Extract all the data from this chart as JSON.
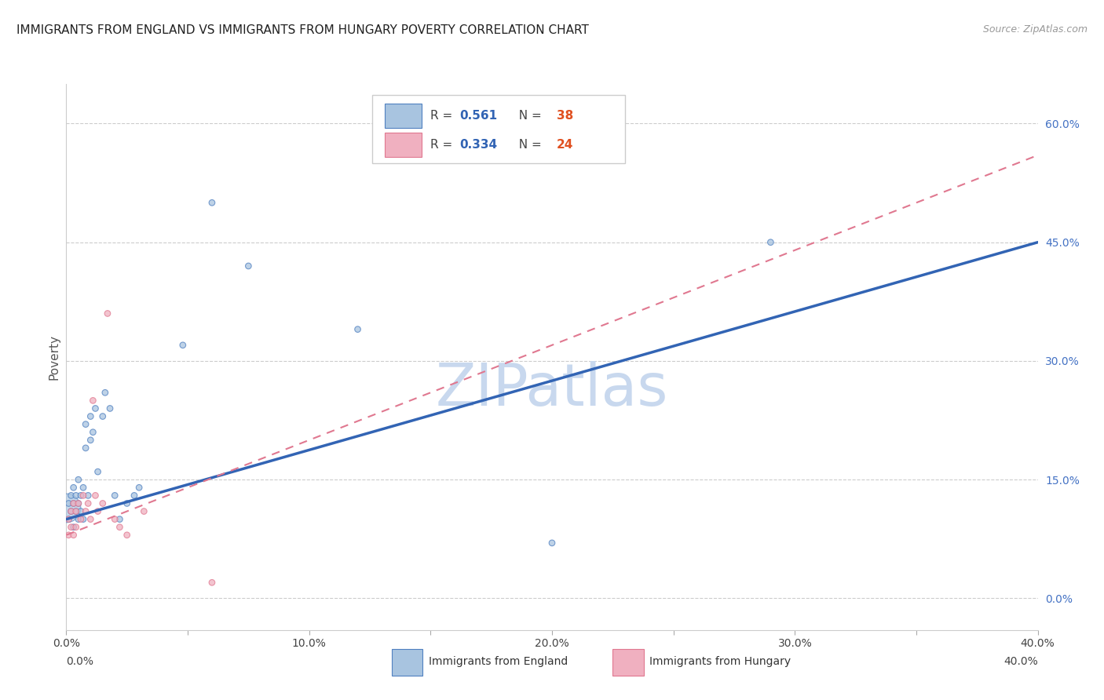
{
  "title": "IMMIGRANTS FROM ENGLAND VS IMMIGRANTS FROM HUNGARY POVERTY CORRELATION CHART",
  "source": "Source: ZipAtlas.com",
  "ylabel": "Poverty",
  "legend_england": "Immigrants from England",
  "legend_hungary": "Immigrants from Hungary",
  "R_england": "0.561",
  "N_england": "38",
  "R_hungary": "0.334",
  "N_hungary": "24",
  "xlim": [
    0.0,
    0.4
  ],
  "ylim": [
    -0.04,
    0.65
  ],
  "yticks": [
    0.0,
    0.15,
    0.3,
    0.45,
    0.6
  ],
  "xticks": [
    0.0,
    0.05,
    0.1,
    0.15,
    0.2,
    0.25,
    0.3,
    0.35,
    0.4
  ],
  "xtick_labels": [
    "0.0%",
    "",
    "10.0%",
    "",
    "20.0%",
    "",
    "30.0%",
    "",
    "40.0%"
  ],
  "color_england": "#a8c4e0",
  "color_hungary": "#f0b0c0",
  "edge_england": "#5080c0",
  "edge_hungary": "#e07890",
  "line_england_color": "#3264b4",
  "line_hungary_color": "#e07890",
  "watermark": "ZIPatlas",
  "watermark_color": "#c8d8ee",
  "england_line_x0": 0.0,
  "england_line_y0": 0.1,
  "england_line_x1": 0.4,
  "england_line_y1": 0.45,
  "hungary_line_x0": 0.0,
  "hungary_line_y0": 0.08,
  "hungary_line_x1": 0.4,
  "hungary_line_y1": 0.56,
  "england_pts_x": [
    0.001,
    0.001,
    0.002,
    0.002,
    0.003,
    0.003,
    0.003,
    0.004,
    0.004,
    0.005,
    0.005,
    0.005,
    0.006,
    0.006,
    0.007,
    0.007,
    0.008,
    0.008,
    0.009,
    0.01,
    0.01,
    0.011,
    0.012,
    0.013,
    0.015,
    0.016,
    0.018,
    0.02,
    0.022,
    0.025,
    0.028,
    0.03,
    0.048,
    0.06,
    0.075,
    0.12,
    0.2,
    0.29
  ],
  "england_pts_y": [
    0.12,
    0.1,
    0.13,
    0.11,
    0.12,
    0.09,
    0.14,
    0.11,
    0.13,
    0.12,
    0.1,
    0.15,
    0.13,
    0.11,
    0.14,
    0.1,
    0.22,
    0.19,
    0.13,
    0.23,
    0.2,
    0.21,
    0.24,
    0.16,
    0.23,
    0.26,
    0.24,
    0.13,
    0.1,
    0.12,
    0.13,
    0.14,
    0.32,
    0.5,
    0.42,
    0.34,
    0.07,
    0.45
  ],
  "england_pts_sz": [
    30,
    30,
    30,
    30,
    30,
    30,
    30,
    30,
    30,
    30,
    30,
    30,
    30,
    30,
    30,
    30,
    30,
    30,
    30,
    30,
    30,
    30,
    30,
    30,
    30,
    30,
    30,
    30,
    30,
    30,
    30,
    30,
    30,
    30,
    30,
    30,
    30,
    30
  ],
  "england_big_x": [
    0.0
  ],
  "england_big_y": [
    0.115
  ],
  "england_big_sz": [
    700
  ],
  "hungary_pts_x": [
    0.001,
    0.001,
    0.002,
    0.002,
    0.003,
    0.003,
    0.004,
    0.004,
    0.005,
    0.006,
    0.007,
    0.008,
    0.009,
    0.01,
    0.011,
    0.012,
    0.013,
    0.015,
    0.017,
    0.02,
    0.022,
    0.025,
    0.032,
    0.06
  ],
  "hungary_pts_y": [
    0.1,
    0.08,
    0.11,
    0.09,
    0.12,
    0.08,
    0.11,
    0.09,
    0.12,
    0.1,
    0.13,
    0.11,
    0.12,
    0.1,
    0.25,
    0.13,
    0.11,
    0.12,
    0.36,
    0.1,
    0.09,
    0.08,
    0.11,
    0.02
  ],
  "hungary_pts_sz": [
    30,
    30,
    30,
    30,
    30,
    30,
    30,
    30,
    30,
    30,
    30,
    30,
    30,
    30,
    30,
    30,
    30,
    30,
    30,
    30,
    30,
    30,
    30,
    30
  ]
}
